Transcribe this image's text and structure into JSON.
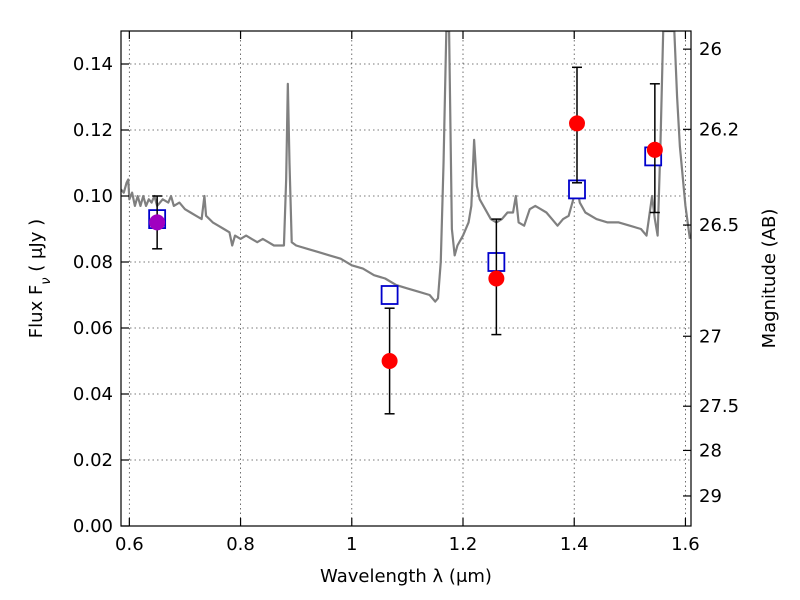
{
  "chart_data": {
    "type": "scatter",
    "xlabel": "Wavelength  λ (μm)",
    "ylabel": "Flux  F",
    "ylabel_sub": "ν",
    "ylabel_unit": "  ( μJy )",
    "y2label": "Magnitude (AB)",
    "xlim": [
      0.585,
      1.61
    ],
    "ylim": [
      0.0,
      0.15
    ],
    "grid": true,
    "x_ticks": [
      {
        "value": 0.6,
        "label": "0.6"
      },
      {
        "value": 0.8,
        "label": "0.8"
      },
      {
        "value": 1.0,
        "label": "1"
      },
      {
        "value": 1.2,
        "label": "1.2"
      },
      {
        "value": 1.4,
        "label": "1.4"
      },
      {
        "value": 1.6,
        "label": "1.6"
      }
    ],
    "y_ticks": [
      {
        "value": 0.0,
        "label": "0.00"
      },
      {
        "value": 0.02,
        "label": "0.02"
      },
      {
        "value": 0.04,
        "label": "0.04"
      },
      {
        "value": 0.06,
        "label": "0.06"
      },
      {
        "value": 0.08,
        "label": "0.08"
      },
      {
        "value": 0.1,
        "label": "0.10"
      },
      {
        "value": 0.12,
        "label": "0.12"
      },
      {
        "value": 0.14,
        "label": "0.14"
      }
    ],
    "y2_ticks": [
      {
        "flux": 0.1445,
        "label": "26"
      },
      {
        "flux": 0.1202,
        "label": "26.2"
      },
      {
        "flux": 0.0912,
        "label": "26.5"
      },
      {
        "flux": 0.0575,
        "label": "27"
      },
      {
        "flux": 0.0363,
        "label": "27.5"
      },
      {
        "flux": 0.0229,
        "label": "28"
      },
      {
        "flux": 0.0091,
        "label": "29"
      }
    ],
    "series": [
      {
        "kind": "line",
        "color": "#808080",
        "points": [
          [
            0.585,
            0.102
          ],
          [
            0.59,
            0.101
          ],
          [
            0.595,
            0.104
          ],
          [
            0.598,
            0.105
          ],
          [
            0.6,
            0.099
          ],
          [
            0.605,
            0.101
          ],
          [
            0.61,
            0.097
          ],
          [
            0.615,
            0.1
          ],
          [
            0.62,
            0.097
          ],
          [
            0.625,
            0.1
          ],
          [
            0.63,
            0.097
          ],
          [
            0.635,
            0.099
          ],
          [
            0.64,
            0.098
          ],
          [
            0.645,
            0.1
          ],
          [
            0.65,
            0.097
          ],
          [
            0.66,
            0.099
          ],
          [
            0.67,
            0.098
          ],
          [
            0.675,
            0.1
          ],
          [
            0.68,
            0.097
          ],
          [
            0.69,
            0.098
          ],
          [
            0.7,
            0.096
          ],
          [
            0.71,
            0.095
          ],
          [
            0.72,
            0.094
          ],
          [
            0.73,
            0.093
          ],
          [
            0.735,
            0.1
          ],
          [
            0.738,
            0.094
          ],
          [
            0.75,
            0.092
          ],
          [
            0.76,
            0.091
          ],
          [
            0.77,
            0.09
          ],
          [
            0.78,
            0.089
          ],
          [
            0.785,
            0.085
          ],
          [
            0.79,
            0.088
          ],
          [
            0.8,
            0.087
          ],
          [
            0.81,
            0.088
          ],
          [
            0.82,
            0.087
          ],
          [
            0.83,
            0.086
          ],
          [
            0.84,
            0.087
          ],
          [
            0.85,
            0.086
          ],
          [
            0.86,
            0.085
          ],
          [
            0.87,
            0.085
          ],
          [
            0.878,
            0.085
          ],
          [
            0.882,
            0.105
          ],
          [
            0.885,
            0.134
          ],
          [
            0.888,
            0.11
          ],
          [
            0.892,
            0.086
          ],
          [
            0.9,
            0.085
          ],
          [
            0.92,
            0.084
          ],
          [
            0.94,
            0.083
          ],
          [
            0.96,
            0.082
          ],
          [
            0.98,
            0.081
          ],
          [
            1.0,
            0.079
          ],
          [
            1.02,
            0.078
          ],
          [
            1.04,
            0.076
          ],
          [
            1.06,
            0.075
          ],
          [
            1.08,
            0.073
          ],
          [
            1.1,
            0.072
          ],
          [
            1.12,
            0.071
          ],
          [
            1.14,
            0.07
          ],
          [
            1.15,
            0.068
          ],
          [
            1.155,
            0.069
          ],
          [
            1.16,
            0.08
          ],
          [
            1.165,
            0.11
          ],
          [
            1.17,
            0.15
          ],
          [
            1.175,
            0.15
          ],
          [
            1.18,
            0.09
          ],
          [
            1.185,
            0.082
          ],
          [
            1.19,
            0.085
          ],
          [
            1.2,
            0.088
          ],
          [
            1.21,
            0.092
          ],
          [
            1.215,
            0.097
          ],
          [
            1.22,
            0.117
          ],
          [
            1.225,
            0.103
          ],
          [
            1.23,
            0.099
          ],
          [
            1.24,
            0.096
          ],
          [
            1.25,
            0.093
          ],
          [
            1.26,
            0.092
          ],
          [
            1.27,
            0.093
          ],
          [
            1.28,
            0.095
          ],
          [
            1.29,
            0.095
          ],
          [
            1.295,
            0.1
          ],
          [
            1.3,
            0.092
          ],
          [
            1.31,
            0.091
          ],
          [
            1.32,
            0.096
          ],
          [
            1.33,
            0.097
          ],
          [
            1.34,
            0.096
          ],
          [
            1.35,
            0.095
          ],
          [
            1.36,
            0.093
          ],
          [
            1.37,
            0.091
          ],
          [
            1.38,
            0.093
          ],
          [
            1.39,
            0.094
          ],
          [
            1.4,
            0.1
          ],
          [
            1.405,
            0.103
          ],
          [
            1.41,
            0.098
          ],
          [
            1.42,
            0.095
          ],
          [
            1.44,
            0.093
          ],
          [
            1.46,
            0.092
          ],
          [
            1.48,
            0.092
          ],
          [
            1.5,
            0.091
          ],
          [
            1.52,
            0.09
          ],
          [
            1.53,
            0.088
          ],
          [
            1.54,
            0.1
          ],
          [
            1.545,
            0.093
          ],
          [
            1.55,
            0.088
          ],
          [
            1.555,
            0.115
          ],
          [
            1.56,
            0.15
          ],
          [
            1.58,
            0.15
          ],
          [
            1.585,
            0.13
          ],
          [
            1.59,
            0.115
          ],
          [
            1.6,
            0.097
          ],
          [
            1.608,
            0.087
          ]
        ]
      },
      {
        "kind": "marker",
        "shape": "square",
        "color": "#0000cc",
        "points": [
          [
            0.65,
            0.093
          ],
          [
            1.068,
            0.07
          ],
          [
            1.26,
            0.08
          ],
          [
            1.405,
            0.102
          ],
          [
            1.542,
            0.112
          ]
        ]
      },
      {
        "kind": "marker",
        "shape": "circle",
        "color": "#ff0000",
        "points": [
          [
            1.068,
            0.05
          ],
          [
            1.26,
            0.075
          ],
          [
            1.405,
            0.122
          ],
          [
            1.545,
            0.114
          ]
        ],
        "errors": [
          [
            0.034,
            0.066
          ],
          [
            0.058,
            0.093
          ],
          [
            0.104,
            0.139
          ],
          [
            0.095,
            0.134
          ]
        ]
      },
      {
        "kind": "marker",
        "shape": "circle",
        "color": "#a000c0",
        "points": [
          [
            0.65,
            0.092
          ]
        ],
        "errors": [
          [
            0.084,
            0.1
          ]
        ]
      }
    ]
  }
}
